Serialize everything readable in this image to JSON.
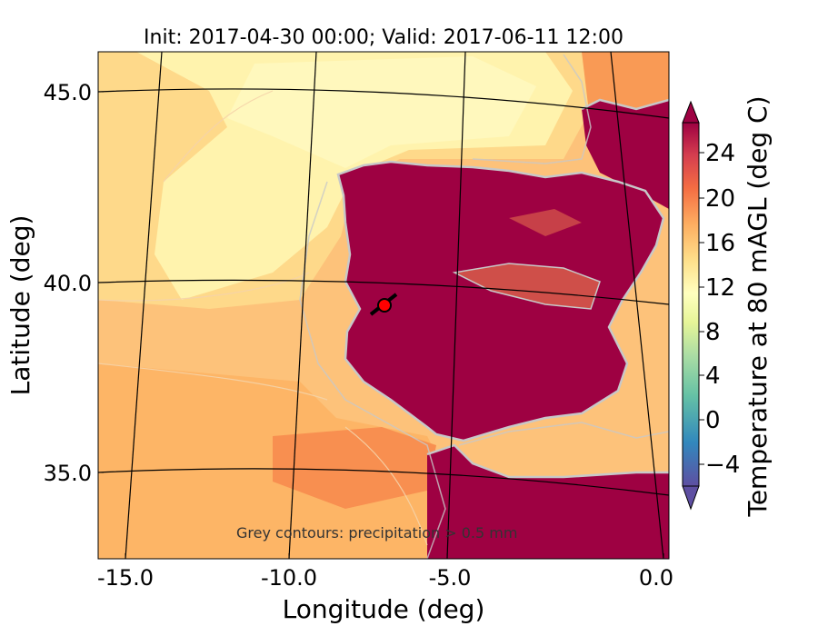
{
  "title": "Init: 2017-04-30 00:00; Valid: 2017-06-11 12:00",
  "xlabel": "Longitude (deg)",
  "ylabel": "Latitude (deg)",
  "x_ticks": [
    "-15.0",
    "-10.0",
    "-5.0",
    "0.0"
  ],
  "y_ticks": [
    "45.0",
    "40.0",
    "35.0"
  ],
  "note": "Grey contours: precipitation > 0.5 mm",
  "colorbar": {
    "label": "Temperature at 80 mAGL (deg C)",
    "ticks": [
      "24",
      "20",
      "16",
      "12",
      "8",
      "4",
      "0",
      "−4"
    ],
    "colors": [
      "#5e4fa2",
      "#3288bd",
      "#66c2a5",
      "#abdda4",
      "#e6f598",
      "#ffffbf",
      "#fee08b",
      "#fdae61",
      "#f46d43",
      "#d53e4f",
      "#9e0142"
    ]
  },
  "marker": {
    "name": "red-circle-marker",
    "color": "#ff0000"
  },
  "colors": {
    "land_hot": "#9e0142",
    "sea_warm": "#fdbf6f",
    "sea_cool": "#fee8a0",
    "sea_coolest": "#fff6b0",
    "contour": "#c8c8c8"
  }
}
